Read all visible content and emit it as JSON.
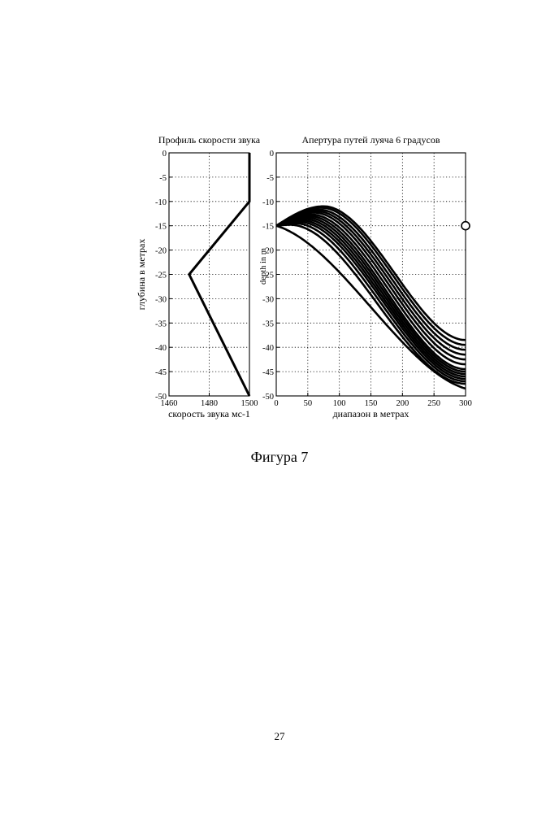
{
  "caption": "Фигура 7",
  "page_number": "27",
  "chart_data": [
    {
      "type": "line",
      "title": "Профиль скорости звука",
      "xlabel": "скорость звука мс-1",
      "ylabel": "глубина в метрах",
      "xlim": [
        1460,
        1500
      ],
      "ylim": [
        -50,
        0
      ],
      "grid": true,
      "x_ticks": [
        "1460",
        "1480",
        "1500"
      ],
      "y_ticks": [
        "0",
        "-5",
        "-10",
        "-15",
        "-20",
        "-25",
        "-30",
        "-35",
        "-40",
        "-45",
        "-50"
      ],
      "series": [
        {
          "x": [
            1500,
            1500,
            1470,
            1500
          ],
          "y": [
            0,
            -10,
            -25,
            -50
          ]
        }
      ]
    },
    {
      "type": "line",
      "title": "Апертура путей луяча 6 градусов",
      "xlabel": "диапазон в метрах",
      "ylabel_artifact": "depth in m",
      "xlim": [
        0,
        300
      ],
      "ylim": [
        -50,
        0
      ],
      "grid": true,
      "x_ticks": [
        "0",
        "50",
        "100",
        "150",
        "200",
        "250",
        "300"
      ],
      "y_ticks": [
        "0",
        "-5",
        "-10",
        "-15",
        "-20",
        "-25",
        "-30",
        "-35",
        "-40",
        "-45",
        "-50"
      ],
      "source_depth": -15,
      "marker": {
        "x": 300,
        "y": -15
      },
      "rays": [
        {
          "y_min": -11,
          "x_at_min": 75,
          "end_y": -38.5
        },
        {
          "y_min": -11.3,
          "x_at_min": 72,
          "end_y": -39.5
        },
        {
          "y_min": -11.7,
          "x_at_min": 68,
          "end_y": -40.5
        },
        {
          "y_min": -12,
          "x_at_min": 64,
          "end_y": -41.5
        },
        {
          "y_min": -12.3,
          "x_at_min": 60,
          "end_y": -42.5
        },
        {
          "y_min": -12.7,
          "x_at_min": 56,
          "end_y": -43.5
        },
        {
          "y_min": -13,
          "x_at_min": 52,
          "end_y": -44.5
        },
        {
          "y_min": -13.3,
          "x_at_min": 48,
          "end_y": -45
        },
        {
          "y_min": -13.6,
          "x_at_min": 44,
          "end_y": -45.5
        },
        {
          "y_min": -13.9,
          "x_at_min": 40,
          "end_y": -46
        },
        {
          "y_min": -14.2,
          "x_at_min": 36,
          "end_y": -46.5
        },
        {
          "y_min": -14.5,
          "x_at_min": 30,
          "end_y": -47
        },
        {
          "y_min": -14.8,
          "x_at_min": 22,
          "end_y": -47.5
        },
        {
          "y_min": -15,
          "x_at_min": 0,
          "end_y": -48.5
        }
      ]
    }
  ]
}
